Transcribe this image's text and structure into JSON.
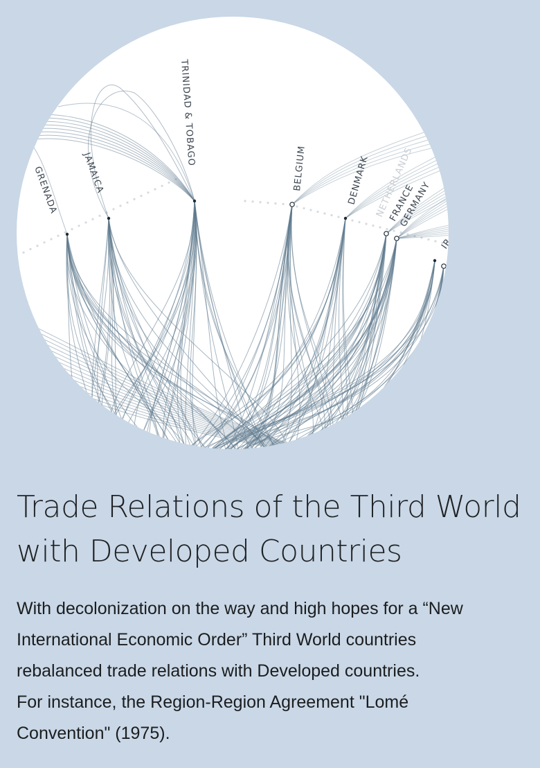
{
  "visualization": {
    "nodes_left": [
      {
        "label": "GRENADA"
      },
      {
        "label": "JAMAICA"
      },
      {
        "label": "TRINIDAD & TOBAGO"
      }
    ],
    "nodes_right": [
      {
        "label": "BELGIUM"
      },
      {
        "label": "DENMARK"
      },
      {
        "label": "FRANCE"
      },
      {
        "label": "GERMANY"
      },
      {
        "label": "IR"
      }
    ],
    "faded_label": "NETHERLANDS",
    "link_color": "#5f7a8e",
    "background_color": "#c9d7e6"
  },
  "title": "Trade Relations of the Third World with Developed Countries",
  "description_lines": [
    "With decolonization on the way and high hopes for a “New",
    "International Economic Order” Third World countries",
    "rebalanced trade relations with Developed countries.",
    "For instance, the Region-Region Agreement \"Lomé",
    "Convention\" (1975)."
  ]
}
